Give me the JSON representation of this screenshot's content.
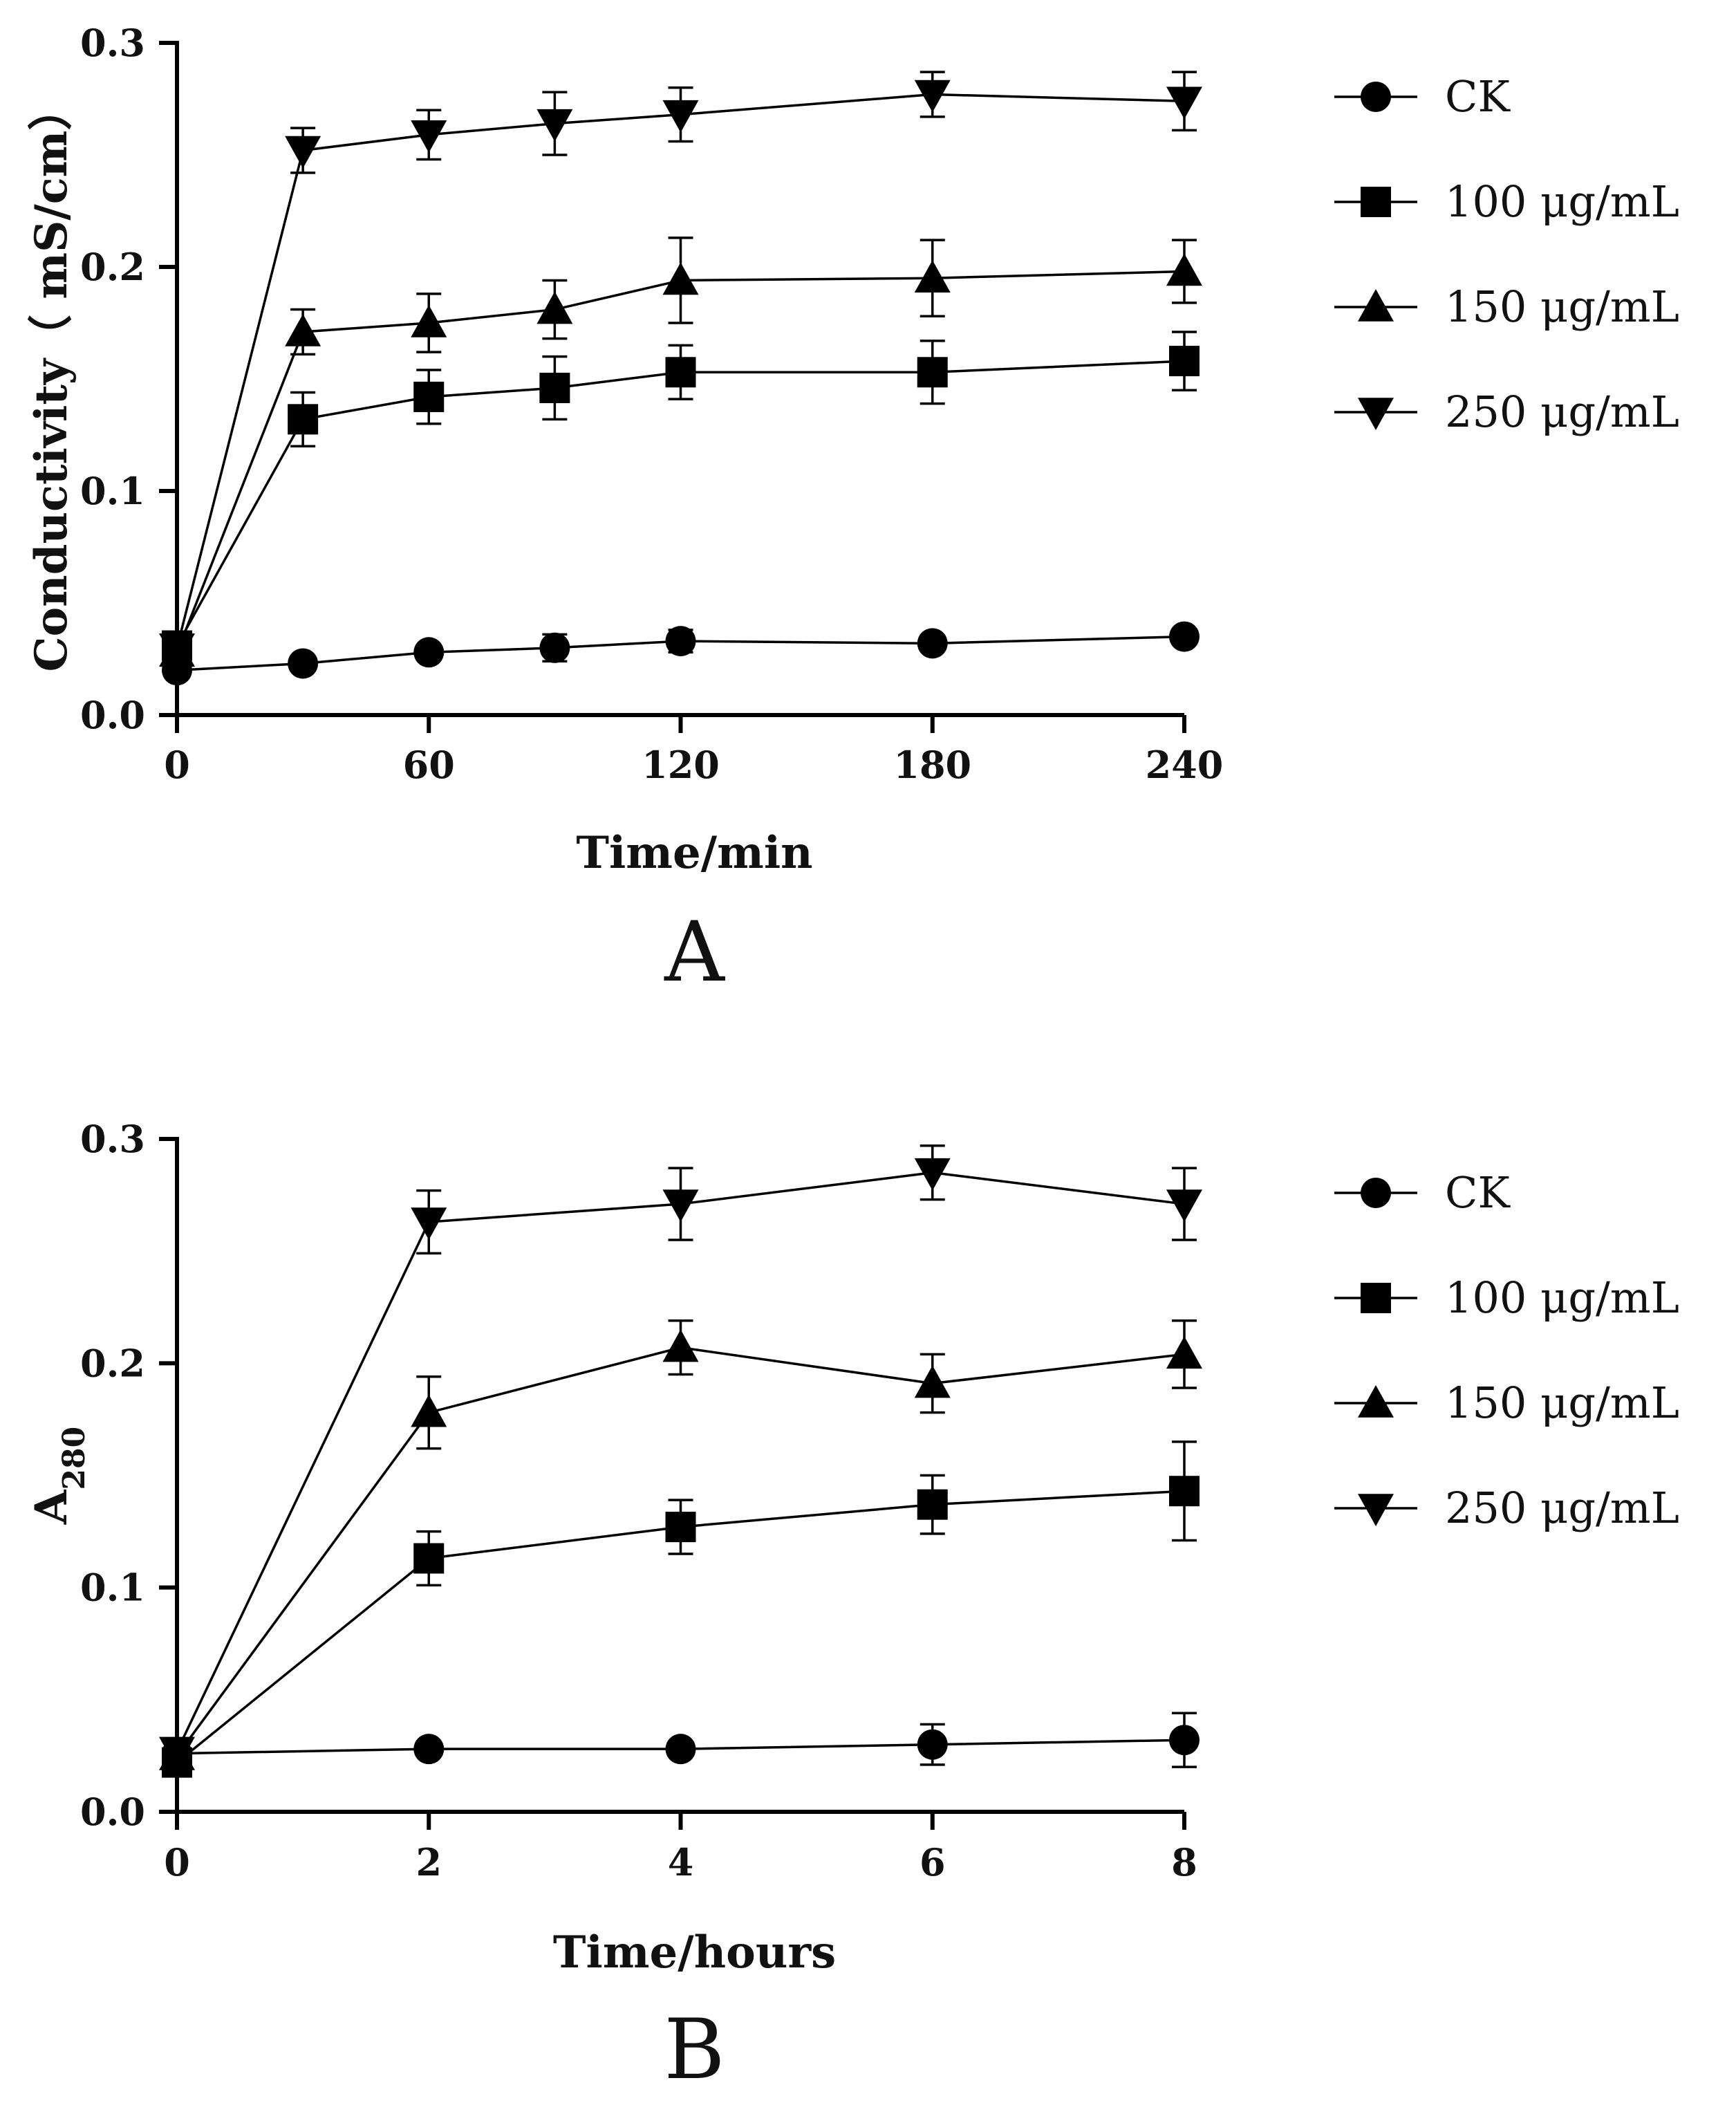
{
  "chart_data": [
    {
      "type": "line",
      "panel_label": "A",
      "xlabel": "Time/min",
      "ylabel": "Conductivity（ mS/cm）",
      "xlim": [
        0,
        240
      ],
      "ylim": [
        0,
        0.3
      ],
      "x_ticks": [
        0,
        60,
        120,
        180,
        240
      ],
      "x_tick_labels": [
        "0",
        "60",
        "120",
        "180",
        "240"
      ],
      "y_ticks": [
        0,
        0.1,
        0.2,
        0.3
      ],
      "y_tick_labels": [
        "0.0",
        "0.1",
        "0.2",
        "0.3"
      ],
      "x": [
        0,
        30,
        60,
        90,
        120,
        180,
        240
      ],
      "legend_position": "right",
      "series": [
        {
          "name": "CK",
          "marker": "circle",
          "values": [
            0.02,
            0.023,
            0.028,
            0.03,
            0.033,
            0.032,
            0.035
          ],
          "errors": [
            0.002,
            0.002,
            0.003,
            0.006,
            0.005,
            0.003,
            0.003
          ]
        },
        {
          "name": "100 μg/mL",
          "marker": "square",
          "values": [
            0.031,
            0.132,
            0.142,
            0.146,
            0.153,
            0.153,
            0.158
          ],
          "errors": [
            0.003,
            0.012,
            0.012,
            0.014,
            0.012,
            0.014,
            0.013
          ]
        },
        {
          "name": "150 μg/mL",
          "marker": "triangle-up",
          "values": [
            0.028,
            0.171,
            0.175,
            0.181,
            0.194,
            0.195,
            0.198
          ],
          "errors": [
            0.003,
            0.01,
            0.013,
            0.013,
            0.019,
            0.017,
            0.014
          ]
        },
        {
          "name": "250  μg/mL",
          "marker": "triangle-down",
          "values": [
            0.03,
            0.252,
            0.259,
            0.264,
            0.268,
            0.277,
            0.274
          ],
          "errors": [
            0.003,
            0.01,
            0.011,
            0.014,
            0.012,
            0.01,
            0.013
          ]
        }
      ]
    },
    {
      "type": "line",
      "panel_label": "B",
      "xlabel": "Time/hours",
      "ylabel": "A",
      "ylabel_subscript": "280",
      "xlim": [
        0,
        8
      ],
      "ylim": [
        0,
        0.3
      ],
      "x_ticks": [
        0,
        2,
        4,
        6,
        8
      ],
      "x_tick_labels": [
        "0",
        "2",
        "4",
        "6",
        "8"
      ],
      "y_ticks": [
        0,
        0.1,
        0.2,
        0.3
      ],
      "y_tick_labels": [
        "0.0",
        "0.1",
        "0.2",
        "0.3"
      ],
      "x": [
        0,
        2,
        4,
        6,
        8
      ],
      "legend_position": "right",
      "series": [
        {
          "name": "CK",
          "marker": "circle",
          "values": [
            0.026,
            0.028,
            0.028,
            0.03,
            0.032
          ],
          "errors": [
            0.002,
            0.002,
            0.002,
            0.009,
            0.012
          ]
        },
        {
          "name": "100 μg/mL",
          "marker": "square",
          "values": [
            0.022,
            0.113,
            0.127,
            0.137,
            0.143
          ],
          "errors": [
            0.003,
            0.012,
            0.012,
            0.013,
            0.022
          ]
        },
        {
          "name": "150 μg/mL",
          "marker": "triangle-up",
          "values": [
            0.025,
            0.178,
            0.207,
            0.191,
            0.204
          ],
          "errors": [
            0.003,
            0.016,
            0.012,
            0.013,
            0.015
          ]
        },
        {
          "name": "250 μg/mL",
          "marker": "triangle-down",
          "values": [
            0.027,
            0.263,
            0.271,
            0.285,
            0.271
          ],
          "errors": [
            0.003,
            0.014,
            0.016,
            0.012,
            0.016
          ]
        }
      ]
    }
  ]
}
